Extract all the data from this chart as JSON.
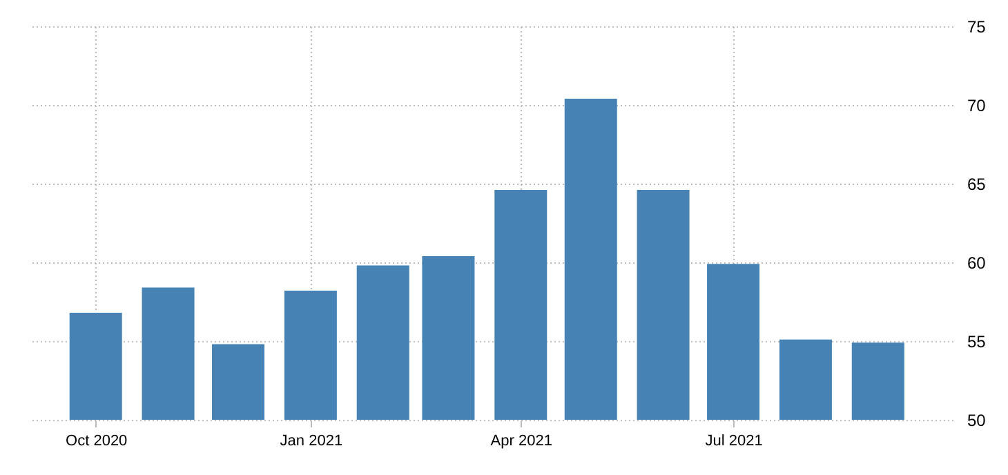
{
  "chart_data": {
    "type": "bar",
    "x": [
      "2020-10",
      "2020-11",
      "2020-12",
      "2021-01",
      "2021-02",
      "2021-03",
      "2021-04",
      "2021-05",
      "2021-06",
      "2021-07",
      "2021-08",
      "2021-09"
    ],
    "values": [
      56.8,
      58.4,
      54.8,
      58.2,
      59.8,
      60.4,
      64.6,
      70.4,
      64.6,
      59.9,
      55.1,
      54.9
    ],
    "color": "#4682b4",
    "xlim": [
      "2020-09-03",
      "2021-10-03"
    ],
    "xticks": [
      {
        "value": "2020-10",
        "label": "Oct 2020"
      },
      {
        "value": "2021-01",
        "label": "Jan 2021"
      },
      {
        "value": "2021-04",
        "label": "Apr 2021"
      },
      {
        "value": "2021-07",
        "label": "Jul 2021"
      }
    ],
    "ylim": [
      50,
      75
    ],
    "yticks": [
      50,
      55,
      60,
      65,
      70,
      75
    ],
    "grid": true
  }
}
